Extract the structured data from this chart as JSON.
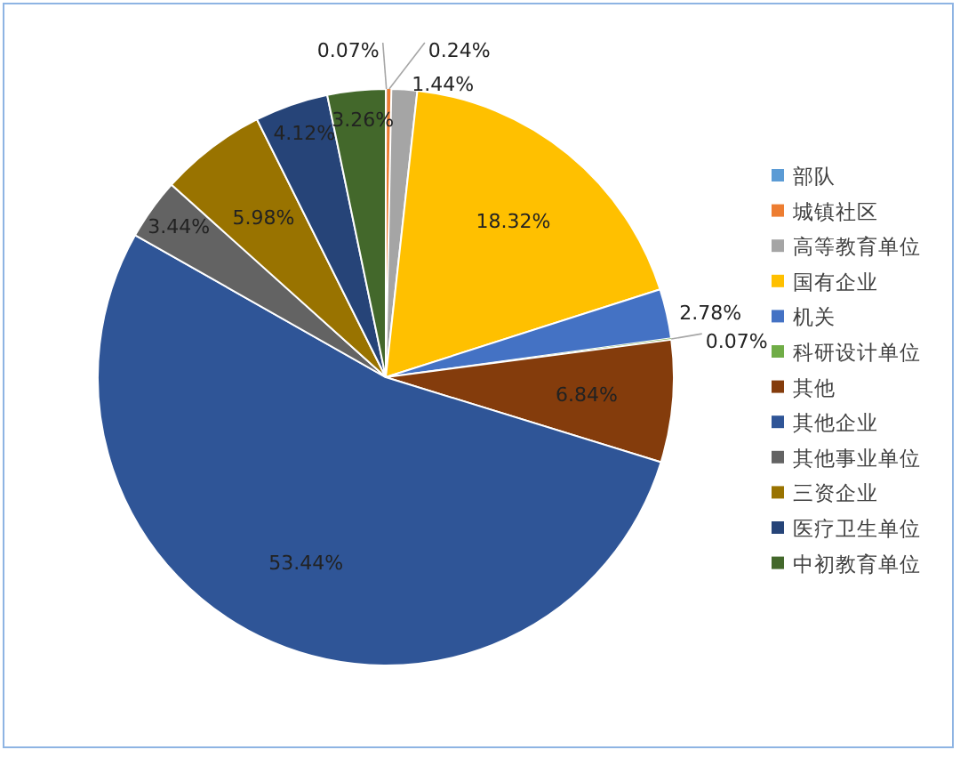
{
  "chart_data": {
    "type": "pie",
    "categories": [
      "部队",
      "城镇社区",
      "高等教育单位",
      "国有企业",
      "机关",
      "科研设计单位",
      "其他",
      "其他企业",
      "其他事业单位",
      "三资企业",
      "医疗卫生单位",
      "中初教育单位"
    ],
    "values": [
      0.07,
      0.24,
      1.44,
      18.32,
      2.78,
      0.07,
      6.84,
      53.44,
      3.44,
      5.98,
      4.12,
      3.26
    ],
    "colors": [
      "#5b9bd5",
      "#ed7d31",
      "#a5a5a5",
      "#ffc000",
      "#4472c4",
      "#70ad47",
      "#843c0c",
      "#2f5597",
      "#636363",
      "#997300",
      "#264478",
      "#43682b"
    ],
    "value_labels": [
      "0.07%",
      "0.24%",
      "1.44%",
      "18.32%",
      "2.78%",
      "0.07%",
      "6.84%",
      "53.44%",
      "3.44%",
      "5.98%",
      "4.12%",
      "3.26%"
    ],
    "legend": "right"
  }
}
